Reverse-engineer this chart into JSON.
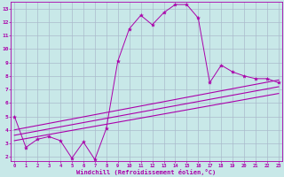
{
  "xlabel": "Windchill (Refroidissement éolien,°C)",
  "bg_color": "#c8e8e8",
  "grid_color": "#aabbcc",
  "line_color": "#aa00aa",
  "xlim_min": -0.3,
  "xlim_max": 23.3,
  "ylim_min": 1.7,
  "ylim_max": 13.5,
  "xticks": [
    0,
    1,
    2,
    3,
    4,
    5,
    6,
    7,
    8,
    9,
    10,
    11,
    12,
    13,
    14,
    15,
    16,
    17,
    18,
    19,
    20,
    21,
    22,
    23
  ],
  "yticks": [
    2,
    3,
    4,
    5,
    6,
    7,
    8,
    9,
    10,
    11,
    12,
    13
  ],
  "main_x": [
    0,
    1,
    2,
    3,
    4,
    5,
    6,
    7,
    8,
    9,
    10,
    11,
    12,
    13,
    14,
    15,
    16,
    17,
    18,
    19,
    20,
    21,
    22,
    23
  ],
  "main_y": [
    5.0,
    2.7,
    3.3,
    3.5,
    3.2,
    1.9,
    3.1,
    1.8,
    4.1,
    9.1,
    11.5,
    12.5,
    11.8,
    12.7,
    13.3,
    13.3,
    12.3,
    7.5,
    8.8,
    8.3,
    8.0,
    7.8,
    7.8,
    7.5
  ],
  "line2_x": [
    0,
    23
  ],
  "line2_y": [
    4.0,
    7.7
  ],
  "line3_x": [
    0,
    23
  ],
  "line3_y": [
    3.6,
    7.2
  ],
  "line4_x": [
    0,
    23
  ],
  "line4_y": [
    3.2,
    6.7
  ]
}
